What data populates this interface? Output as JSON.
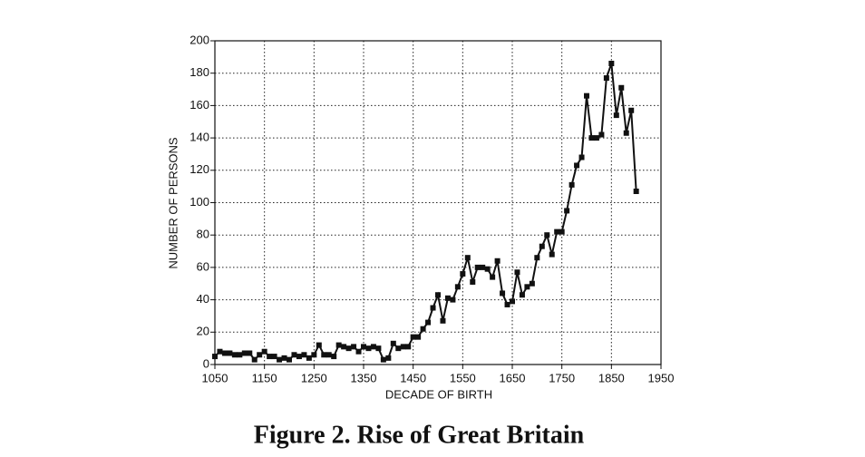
{
  "chart_data": {
    "type": "line",
    "xlabel": "DECADE OF BIRTH",
    "ylabel": "NUMBER OF PERSONS",
    "caption": "Figure 2. Rise of Great Britain",
    "x": [
      1050,
      1060,
      1070,
      1080,
      1090,
      1100,
      1110,
      1120,
      1130,
      1140,
      1150,
      1160,
      1170,
      1180,
      1190,
      1200,
      1210,
      1220,
      1230,
      1240,
      1250,
      1260,
      1270,
      1280,
      1290,
      1300,
      1310,
      1320,
      1330,
      1340,
      1350,
      1360,
      1370,
      1380,
      1390,
      1400,
      1410,
      1420,
      1430,
      1440,
      1450,
      1460,
      1470,
      1480,
      1490,
      1500,
      1510,
      1520,
      1530,
      1540,
      1550,
      1560,
      1570,
      1580,
      1590,
      1600,
      1610,
      1620,
      1630,
      1640,
      1650,
      1660,
      1670,
      1680,
      1690,
      1700,
      1710,
      1720,
      1730,
      1740,
      1750,
      1760,
      1770,
      1780,
      1790,
      1800,
      1810,
      1820,
      1830,
      1840,
      1850,
      1860,
      1870,
      1880,
      1890,
      1900
    ],
    "series": [
      {
        "color": "#111111",
        "values": [
          5,
          8,
          7,
          7,
          6,
          6,
          7,
          7,
          3,
          6,
          8,
          5,
          5,
          3,
          4,
          3,
          6,
          5,
          6,
          4,
          6,
          12,
          6,
          6,
          5,
          12,
          11,
          10,
          11,
          8,
          11,
          10,
          11,
          10,
          3,
          4,
          13,
          10,
          11,
          11,
          17,
          17,
          22,
          26,
          35,
          43,
          27,
          41,
          40,
          48,
          56,
          66,
          51,
          60,
          60,
          59,
          54,
          64,
          44,
          37,
          39,
          57,
          43,
          48,
          50,
          66,
          73,
          80,
          68,
          82,
          82,
          95,
          111,
          123,
          128,
          166,
          140,
          140,
          142,
          177,
          186,
          154,
          171,
          143,
          157,
          107
        ]
      }
    ],
    "xlim": [
      1050,
      1950
    ],
    "xticks": [
      1050,
      1150,
      1250,
      1350,
      1450,
      1550,
      1650,
      1750,
      1850,
      1950
    ],
    "ylim": [
      0,
      200
    ],
    "yticks": [
      0,
      20,
      40,
      60,
      80,
      100,
      120,
      140,
      160,
      180,
      200
    ],
    "grid": true
  }
}
